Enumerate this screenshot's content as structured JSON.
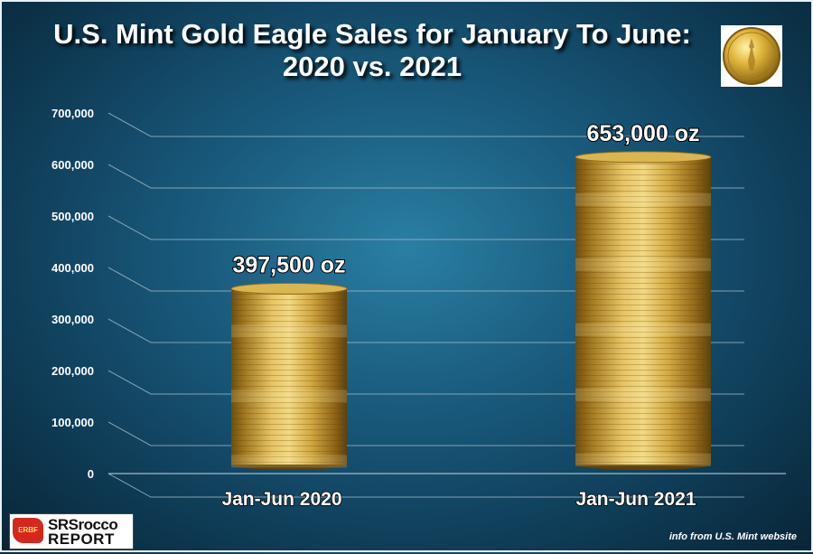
{
  "chart_data": {
    "type": "bar",
    "title": "U.S. Mint Gold Eagle Sales for January To June:  2020 vs. 2021",
    "categories": [
      "Jan-Jun 2020",
      "Jan-Jun 2021"
    ],
    "values": [
      397500,
      653000
    ],
    "data_labels": [
      "397,500 oz",
      "653,000 oz"
    ],
    "ylim": [
      0,
      700000
    ],
    "yticks": [
      0,
      100000,
      200000,
      300000,
      400000,
      500000,
      600000,
      700000
    ],
    "ytick_labels": [
      "0",
      "100,000",
      "200,000",
      "300,000",
      "400,000",
      "500,000",
      "600,000",
      "700,000"
    ],
    "xlabel": "",
    "ylabel": "",
    "grid": true,
    "bar_color": "#c9a43a"
  },
  "brand": {
    "badge": "ERBF",
    "line1": "SRSrocco",
    "line2": "REPORT"
  },
  "source": "info from U.S. Mint website",
  "icons": {
    "top_right": "gold-eagle-coin-icon",
    "bottom_left": "srsrocco-report-logo"
  }
}
